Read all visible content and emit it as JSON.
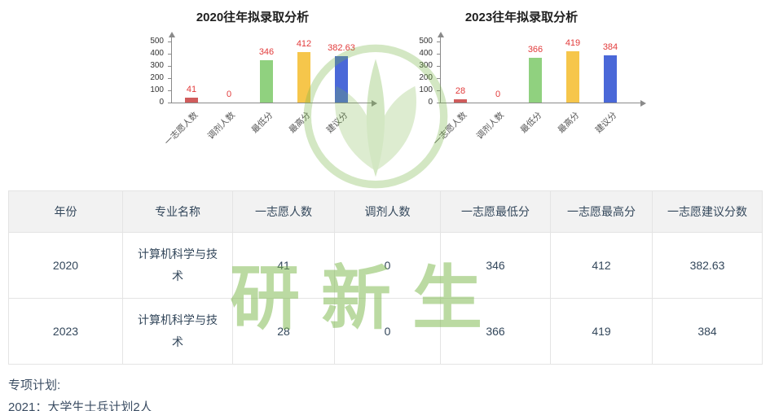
{
  "chart_data": [
    {
      "type": "bar",
      "title": "2020往年拟录取分析",
      "categories": [
        "一志愿人数",
        "调剂人数",
        "最低分",
        "最高分",
        "建议分"
      ],
      "values": [
        41,
        0,
        346,
        412,
        382.63
      ],
      "value_labels": [
        "41",
        "0",
        "346",
        "412",
        "382.63"
      ],
      "bar_colors": [
        "#d05c5c",
        "#d05c5c",
        "#90d17f",
        "#f6c64b",
        "#4a68d8"
      ],
      "label_color": "#e23b3b",
      "ylim": [
        0,
        500
      ],
      "yticks": [
        "0",
        "100",
        "200",
        "300",
        "400",
        "500"
      ],
      "grid": false,
      "legend_position": "none"
    },
    {
      "type": "bar",
      "title": "2023往年拟录取分析",
      "categories": [
        "一志愿人数",
        "调剂人数",
        "最低分",
        "最高分",
        "建议分"
      ],
      "values": [
        28,
        0,
        366,
        419,
        384
      ],
      "value_labels": [
        "28",
        "0",
        "366",
        "419",
        "384"
      ],
      "bar_colors": [
        "#d05c5c",
        "#d05c5c",
        "#90d17f",
        "#f6c64b",
        "#4a68d8"
      ],
      "label_color": "#e23b3b",
      "ylim": [
        0,
        500
      ],
      "yticks": [
        "0",
        "100",
        "200",
        "300",
        "400",
        "500"
      ],
      "grid": false,
      "legend_position": "none"
    }
  ],
  "table": {
    "headers": [
      "年份",
      "专业名称",
      "一志愿人数",
      "调剂人数",
      "一志愿最低分",
      "一志愿最高分",
      "一志愿建议分数"
    ],
    "rows": [
      [
        "2020",
        "计算机科学与技术",
        "41",
        "0",
        "346",
        "412",
        "382.63"
      ],
      [
        "2023",
        "计算机科学与技术",
        "28",
        "0",
        "366",
        "419",
        "384"
      ]
    ]
  },
  "notes": {
    "line1": "专项计划:",
    "line2": "2021：大学生士兵计划2人"
  },
  "watermark": {
    "text": "研新生",
    "color": "#7ab648"
  },
  "colors": {
    "table_header_bg": "#f2f2f2",
    "table_border": "#e4e4e4",
    "text": "#33475b",
    "value_label_red": "#e23b3b"
  }
}
